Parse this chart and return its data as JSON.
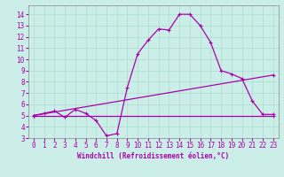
{
  "bg_color": "#cceee8",
  "grid_color": "#aaddcc",
  "line_color": "#aa00aa",
  "xlabel": "Windchill (Refroidissement éolien,°C)",
  "xlim": [
    -0.5,
    23.5
  ],
  "ylim": [
    3.0,
    14.8
  ],
  "xticks": [
    0,
    1,
    2,
    3,
    4,
    5,
    6,
    7,
    8,
    9,
    10,
    11,
    12,
    13,
    14,
    15,
    16,
    17,
    18,
    19,
    20,
    21,
    22,
    23
  ],
  "yticks": [
    3,
    4,
    5,
    6,
    7,
    8,
    9,
    10,
    11,
    12,
    13,
    14
  ],
  "curve1_x": [
    0,
    1,
    2,
    3,
    4,
    5,
    6,
    7,
    8,
    9,
    10,
    11,
    12,
    13,
    14,
    15,
    16,
    17,
    18,
    19,
    20,
    21,
    22,
    23
  ],
  "curve1_y": [
    5.0,
    5.2,
    5.4,
    4.85,
    5.55,
    5.2,
    4.55,
    3.2,
    3.4,
    7.5,
    10.5,
    11.7,
    12.7,
    12.6,
    14.0,
    14.0,
    13.0,
    11.5,
    9.0,
    8.7,
    8.3,
    6.3,
    5.1,
    5.1
  ],
  "curve2_x": [
    0,
    23
  ],
  "curve2_y": [
    5.0,
    5.0
  ],
  "curve3_x": [
    0,
    23
  ],
  "curve3_y": [
    5.0,
    8.6
  ]
}
